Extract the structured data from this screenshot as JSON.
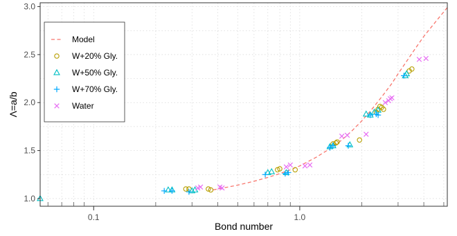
{
  "chart_data": {
    "type": "scatter",
    "xlabel": "Bond number",
    "ylabel": "Λ=a/b",
    "x_scale": "log",
    "xlim": [
      0.055,
      5.2
    ],
    "ylim": [
      0.92,
      3.04
    ],
    "x_ticks": [
      0.1,
      1.0
    ],
    "x_tick_labels": [
      "0.1",
      "1.0"
    ],
    "x_minor_ticks": [
      0.06,
      0.07,
      0.08,
      0.09,
      0.2,
      0.3,
      0.4,
      0.5,
      0.6,
      0.7,
      0.8,
      0.9,
      2,
      3,
      4,
      5
    ],
    "y_ticks": [
      1.0,
      1.5,
      2.0,
      2.5,
      3.0
    ],
    "y_tick_labels": [
      "1.0",
      "1.5",
      "2.0",
      "2.5",
      "3.0"
    ],
    "grid": true,
    "legend_position": "top-left",
    "series": [
      {
        "name": "Model",
        "kind": "line",
        "style": "dashed",
        "color": "#f8766d",
        "x": [
          0.38,
          0.5,
          0.6,
          0.7,
          0.8,
          0.9,
          1.0,
          1.2,
          1.4,
          1.6,
          1.8,
          2.0,
          2.2,
          2.5,
          2.8,
          3.0,
          3.3,
          3.6,
          4.0,
          4.4,
          4.8,
          5.2
        ],
        "y": [
          1.09,
          1.14,
          1.18,
          1.22,
          1.26,
          1.3,
          1.34,
          1.43,
          1.52,
          1.61,
          1.71,
          1.81,
          1.91,
          2.06,
          2.2,
          2.3,
          2.43,
          2.55,
          2.69,
          2.8,
          2.9,
          2.99
        ]
      },
      {
        "name": "W+20% Gly.",
        "kind": "points",
        "marker": "circle",
        "color": "#b79f00",
        "x": [
          0.28,
          0.29,
          0.36,
          0.37,
          0.78,
          0.8,
          0.95,
          1.45,
          1.5,
          1.52,
          1.95,
          2.35,
          2.4,
          2.45,
          2.5,
          2.55,
          3.4,
          3.5
        ],
        "y": [
          1.1,
          1.1,
          1.1,
          1.09,
          1.3,
          1.31,
          1.3,
          1.57,
          1.58,
          1.59,
          1.61,
          1.9,
          1.93,
          1.96,
          1.95,
          1.93,
          2.33,
          2.35
        ]
      },
      {
        "name": "W+50% Gly.",
        "kind": "points",
        "marker": "triangle",
        "color": "#00bfc4",
        "x": [
          0.055,
          0.23,
          0.24,
          0.3,
          0.31,
          0.7,
          0.73,
          0.86,
          1.4,
          1.45,
          1.75,
          2.1,
          2.2,
          2.3,
          2.4,
          3.25,
          3.3
        ],
        "y": [
          1.0,
          1.09,
          1.09,
          1.08,
          1.09,
          1.27,
          1.28,
          1.27,
          1.54,
          1.55,
          1.56,
          1.88,
          1.87,
          1.9,
          1.92,
          2.28,
          2.3
        ]
      },
      {
        "name": "W+70% Gly.",
        "kind": "points",
        "marker": "plus",
        "color": "#00a9ff",
        "x": [
          0.22,
          0.24,
          0.29,
          0.68,
          0.85,
          0.88,
          1.4,
          1.45,
          1.72,
          2.2,
          2.35,
          2.4,
          3.2
        ],
        "y": [
          1.08,
          1.08,
          1.07,
          1.25,
          1.26,
          1.27,
          1.53,
          1.55,
          1.55,
          1.87,
          1.88,
          1.87,
          2.28
        ]
      },
      {
        "name": "Water",
        "kind": "points",
        "marker": "cross",
        "color": "#e76bf3",
        "x": [
          0.32,
          0.33,
          0.41,
          0.42,
          0.86,
          0.9,
          1.06,
          1.12,
          1.6,
          1.7,
          2.1,
          2.6,
          2.7,
          2.75,
          2.8,
          3.8,
          4.1
        ],
        "y": [
          1.11,
          1.12,
          1.12,
          1.11,
          1.33,
          1.35,
          1.34,
          1.35,
          1.65,
          1.66,
          1.67,
          2.0,
          2.02,
          2.04,
          2.05,
          2.45,
          2.46
        ]
      }
    ]
  }
}
